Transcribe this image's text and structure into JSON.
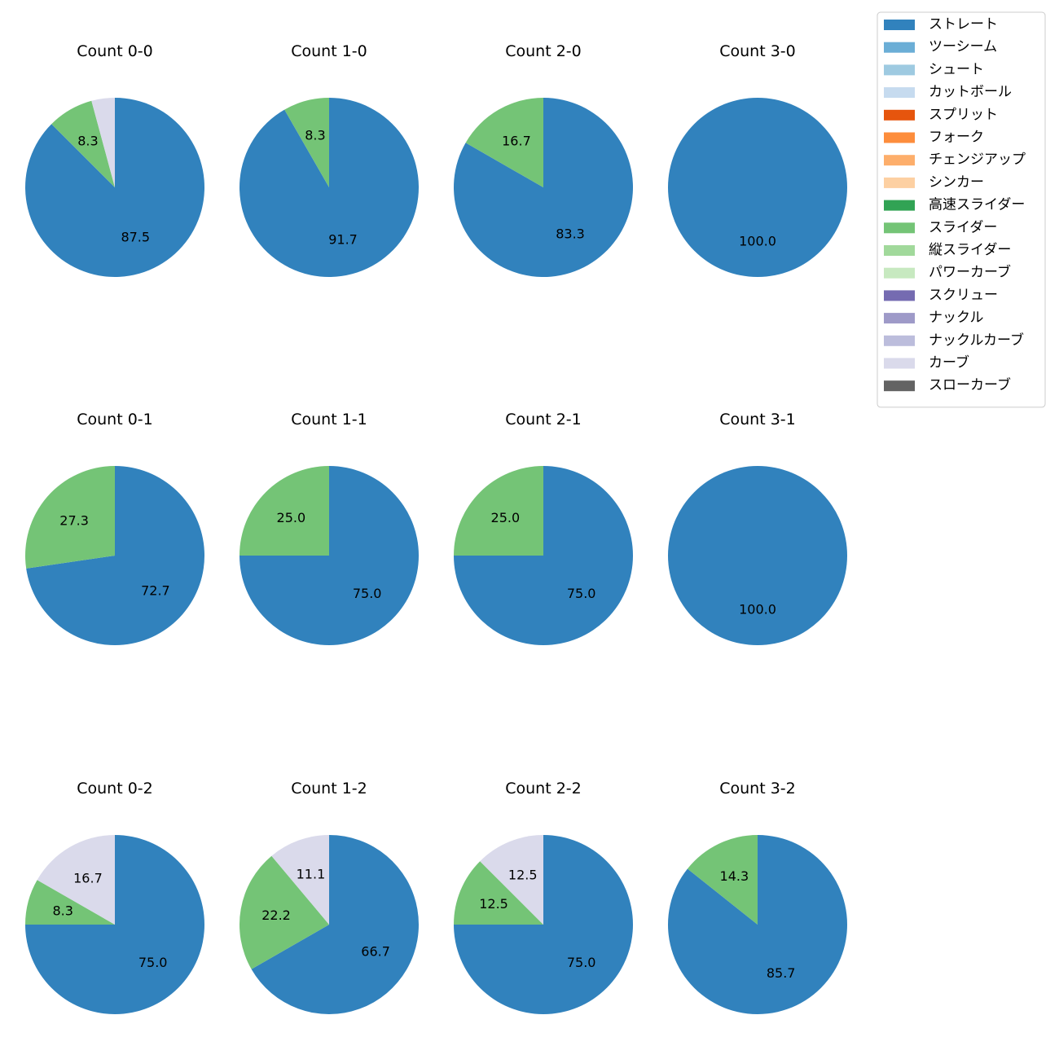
{
  "chart_data": {
    "type": "pie",
    "legend": {
      "location": "top-right",
      "entries": [
        {
          "name": "ストレート",
          "color": "#3182bd"
        },
        {
          "name": "ツーシーム",
          "color": "#6baed6"
        },
        {
          "name": "シュート",
          "color": "#9ecae1"
        },
        {
          "name": "カットボール",
          "color": "#c6dbef"
        },
        {
          "name": "スプリット",
          "color": "#e6550d"
        },
        {
          "name": "フォーク",
          "color": "#fd8d3c"
        },
        {
          "name": "チェンジアップ",
          "color": "#fdae6b"
        },
        {
          "name": "シンカー",
          "color": "#fdd0a2"
        },
        {
          "name": "高速スライダー",
          "color": "#31a354"
        },
        {
          "name": "スライダー",
          "color": "#74c476"
        },
        {
          "name": "縦スライダー",
          "color": "#a1d99b"
        },
        {
          "name": "パワーカーブ",
          "color": "#c7e9c0"
        },
        {
          "name": "スクリュー",
          "color": "#756bb1"
        },
        {
          "name": "ナックル",
          "color": "#9e9ac8"
        },
        {
          "name": "ナックルカーブ",
          "color": "#bcbddc"
        },
        {
          "name": "カーブ",
          "color": "#dadaeb"
        },
        {
          "name": "スローカーブ",
          "color": "#636363"
        }
      ]
    },
    "pies": [
      {
        "title": "Count 0-0",
        "slices": [
          {
            "pitch": "ストレート",
            "value": 87.5,
            "label": "87.5"
          },
          {
            "pitch": "スライダー",
            "value": 8.3,
            "label": "8.3"
          },
          {
            "pitch": "カーブ",
            "value": 4.2,
            "label": ""
          }
        ]
      },
      {
        "title": "Count 1-0",
        "slices": [
          {
            "pitch": "ストレート",
            "value": 91.7,
            "label": "91.7"
          },
          {
            "pitch": "スライダー",
            "value": 8.3,
            "label": "8.3"
          }
        ]
      },
      {
        "title": "Count 2-0",
        "slices": [
          {
            "pitch": "ストレート",
            "value": 83.3,
            "label": "83.3"
          },
          {
            "pitch": "スライダー",
            "value": 16.7,
            "label": "16.7"
          }
        ]
      },
      {
        "title": "Count 3-0",
        "slices": [
          {
            "pitch": "ストレート",
            "value": 100.0,
            "label": "100.0"
          }
        ]
      },
      {
        "title": "Count 0-1",
        "slices": [
          {
            "pitch": "ストレート",
            "value": 72.7,
            "label": "72.7"
          },
          {
            "pitch": "スライダー",
            "value": 27.3,
            "label": "27.3"
          }
        ]
      },
      {
        "title": "Count 1-1",
        "slices": [
          {
            "pitch": "ストレート",
            "value": 75.0,
            "label": "75.0"
          },
          {
            "pitch": "スライダー",
            "value": 25.0,
            "label": "25.0"
          }
        ]
      },
      {
        "title": "Count 2-1",
        "slices": [
          {
            "pitch": "ストレート",
            "value": 75.0,
            "label": "75.0"
          },
          {
            "pitch": "スライダー",
            "value": 25.0,
            "label": "25.0"
          }
        ]
      },
      {
        "title": "Count 3-1",
        "slices": [
          {
            "pitch": "ストレート",
            "value": 100.0,
            "label": "100.0"
          }
        ]
      },
      {
        "title": "Count 0-2",
        "slices": [
          {
            "pitch": "ストレート",
            "value": 75.0,
            "label": "75.0"
          },
          {
            "pitch": "スライダー",
            "value": 8.3,
            "label": "8.3"
          },
          {
            "pitch": "カーブ",
            "value": 16.7,
            "label": "16.7"
          }
        ]
      },
      {
        "title": "Count 1-2",
        "slices": [
          {
            "pitch": "ストレート",
            "value": 66.7,
            "label": "66.7"
          },
          {
            "pitch": "スライダー",
            "value": 22.2,
            "label": "22.2"
          },
          {
            "pitch": "カーブ",
            "value": 11.1,
            "label": "11.1"
          }
        ]
      },
      {
        "title": "Count 2-2",
        "slices": [
          {
            "pitch": "ストレート",
            "value": 75.0,
            "label": "75.0"
          },
          {
            "pitch": "スライダー",
            "value": 12.5,
            "label": "12.5"
          },
          {
            "pitch": "カーブ",
            "value": 12.5,
            "label": "12.5"
          }
        ]
      },
      {
        "title": "Count 3-2",
        "slices": [
          {
            "pitch": "ストレート",
            "value": 85.7,
            "label": "85.7"
          },
          {
            "pitch": "スライダー",
            "value": 14.3,
            "label": "14.3"
          }
        ]
      }
    ]
  }
}
